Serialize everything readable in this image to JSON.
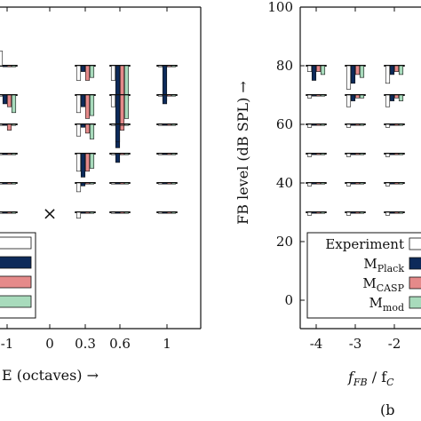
{
  "chart_data": [
    {
      "type": "bar",
      "panel": "left (cropped)",
      "xlabel": "E (octaves) →",
      "x_ticks": [
        "-1",
        "0",
        "0.3",
        "0.6",
        "1"
      ],
      "x_values": [
        -1,
        0,
        0.3,
        0.6,
        1
      ],
      "ylim": [
        0,
        100
      ],
      "reference_levels": [
        30,
        40,
        50,
        60,
        70,
        80
      ],
      "series_colors": {
        "experiment": "#ffffff",
        "plack": "#0d2a5a",
        "casp": "#e58a8a",
        "mod": "#a8dbbc"
      },
      "no_data_marker": {
        "x": 0,
        "y": 30,
        "symbol": "×"
      },
      "groups": [
        {
          "x": -1,
          "ref": 80,
          "values": {
            "experiment": 85,
            "plack": 80,
            "casp": 80,
            "mod": 80
          }
        },
        {
          "x": -1,
          "ref": 70,
          "values": {
            "experiment": 70,
            "plack": 67,
            "casp": 66,
            "mod": 64
          }
        },
        {
          "x": -1,
          "ref": 60,
          "values": {
            "experiment": 60,
            "plack": 60,
            "casp": 58,
            "mod": 60
          }
        },
        {
          "x": -1,
          "ref": 50,
          "values": {
            "experiment": 50,
            "plack": 50,
            "casp": 50,
            "mod": 50
          }
        },
        {
          "x": -1,
          "ref": 40,
          "values": {
            "experiment": 40,
            "plack": 40,
            "casp": 40,
            "mod": 40
          }
        },
        {
          "x": -1,
          "ref": 30,
          "values": {
            "experiment": 30,
            "plack": 30,
            "casp": 30,
            "mod": 30
          }
        },
        {
          "x": 0.3,
          "ref": 80,
          "values": {
            "experiment": 75,
            "plack": 78,
            "casp": 75,
            "mod": 76
          }
        },
        {
          "x": 0.3,
          "ref": 70,
          "values": {
            "experiment": 64,
            "plack": 66,
            "casp": 62,
            "mod": 63
          }
        },
        {
          "x": 0.3,
          "ref": 60,
          "values": {
            "experiment": 56,
            "plack": 59,
            "casp": 57,
            "mod": 55
          }
        },
        {
          "x": 0.3,
          "ref": 50,
          "values": {
            "experiment": 44,
            "plack": 42,
            "casp": 44,
            "mod": 45
          }
        },
        {
          "x": 0.3,
          "ref": 40,
          "values": {
            "experiment": 37,
            "plack": 39,
            "casp": 40,
            "mod": 40
          }
        },
        {
          "x": 0.3,
          "ref": 30,
          "values": {
            "experiment": 28,
            "plack": 30,
            "casp": 30,
            "mod": 30
          }
        },
        {
          "x": 0.6,
          "ref": 80,
          "values": {
            "experiment": 75,
            "plack": 62,
            "casp": 67,
            "mod": 68
          }
        },
        {
          "x": 0.6,
          "ref": 70,
          "values": {
            "experiment": 66,
            "plack": 52,
            "casp": 58,
            "mod": 62
          }
        },
        {
          "x": 0.6,
          "ref": 60,
          "values": {
            "experiment": 60,
            "plack": 54,
            "casp": 60,
            "mod": 60
          }
        },
        {
          "x": 0.6,
          "ref": 50,
          "values": {
            "experiment": 50,
            "plack": 47,
            "casp": 50,
            "mod": 50
          }
        },
        {
          "x": 0.6,
          "ref": 40,
          "values": {
            "experiment": 40,
            "plack": 40,
            "casp": 40,
            "mod": 40
          }
        },
        {
          "x": 0.6,
          "ref": 30,
          "values": {
            "experiment": 30,
            "plack": 30,
            "casp": 30,
            "mod": 30
          }
        },
        {
          "x": 1,
          "ref": 80,
          "values": {
            "experiment": 80,
            "plack": 68,
            "casp": 80,
            "mod": 80
          }
        },
        {
          "x": 1,
          "ref": 70,
          "values": {
            "experiment": 70,
            "plack": 67,
            "casp": 70,
            "mod": 70
          }
        },
        {
          "x": 1,
          "ref": 60,
          "values": {
            "experiment": 60,
            "plack": 60,
            "casp": 60,
            "mod": 60
          }
        },
        {
          "x": 1,
          "ref": 50,
          "values": {
            "experiment": 50,
            "plack": 50,
            "casp": 50,
            "mod": 50
          }
        },
        {
          "x": 1,
          "ref": 40,
          "values": {
            "experiment": 40,
            "plack": 40,
            "casp": 40,
            "mod": 40
          }
        },
        {
          "x": 1,
          "ref": 30,
          "values": {
            "experiment": 30,
            "plack": 30,
            "casp": 30,
            "mod": 30
          }
        }
      ]
    },
    {
      "type": "bar",
      "panel": "right",
      "ylabel": "FB level (dB SPL) →",
      "y_ticks": [
        "0",
        "20",
        "40",
        "60",
        "80",
        "100"
      ],
      "ylim": [
        0,
        100
      ],
      "x_ticks": [
        "-4",
        "-3",
        "-2"
      ],
      "x_values": [
        -4,
        -3,
        -2
      ],
      "xlabel_main": "f",
      "xlabel_sub": "FB",
      "xlabel_rest": " / f",
      "xlabel_sub2": "C",
      "panel_note": "(b",
      "reference_levels": [
        30,
        40,
        50,
        60,
        70,
        80
      ],
      "legend": {
        "placement": "bottom-right",
        "entries": [
          {
            "key": "experiment",
            "text": "Experiment",
            "sub": ""
          },
          {
            "key": "plack",
            "text": "M",
            "sub": "Plack"
          },
          {
            "key": "casp",
            "text": "M",
            "sub": "CASP"
          },
          {
            "key": "mod",
            "text": "M",
            "sub": "mod"
          }
        ]
      },
      "groups": [
        {
          "x": -4,
          "ref": 80,
          "values": {
            "experiment": 78,
            "plack": 75,
            "casp": 78,
            "mod": 77
          }
        },
        {
          "x": -4,
          "ref": 70,
          "values": {
            "experiment": 69,
            "plack": 70,
            "casp": 70,
            "mod": 70
          }
        },
        {
          "x": -4,
          "ref": 60,
          "values": {
            "experiment": 59,
            "plack": 60,
            "casp": 60,
            "mod": 60
          }
        },
        {
          "x": -4,
          "ref": 50,
          "values": {
            "experiment": 49,
            "plack": 50,
            "casp": 50,
            "mod": 50
          }
        },
        {
          "x": -4,
          "ref": 40,
          "values": {
            "experiment": 39,
            "plack": 40,
            "casp": 40,
            "mod": 40
          }
        },
        {
          "x": -4,
          "ref": 30,
          "values": {
            "experiment": 29,
            "plack": 30,
            "casp": 30,
            "mod": 30
          }
        },
        {
          "x": -3,
          "ref": 80,
          "values": {
            "experiment": 72,
            "plack": 74,
            "casp": 77,
            "mod": 76
          }
        },
        {
          "x": -3,
          "ref": 70,
          "values": {
            "experiment": 66,
            "plack": 68,
            "casp": 69,
            "mod": 69
          }
        },
        {
          "x": -3,
          "ref": 60,
          "values": {
            "experiment": 59,
            "plack": 60,
            "casp": 60,
            "mod": 60
          }
        },
        {
          "x": -3,
          "ref": 50,
          "values": {
            "experiment": 49,
            "plack": 50,
            "casp": 50,
            "mod": 50
          }
        },
        {
          "x": -3,
          "ref": 40,
          "values": {
            "experiment": 39,
            "plack": 40,
            "casp": 40,
            "mod": 40
          }
        },
        {
          "x": -3,
          "ref": 30,
          "values": {
            "experiment": 29,
            "plack": 30,
            "casp": 30,
            "mod": 30
          }
        },
        {
          "x": -2,
          "ref": 80,
          "values": {
            "experiment": 74,
            "plack": 77,
            "casp": 78,
            "mod": 77
          }
        },
        {
          "x": -2,
          "ref": 70,
          "values": {
            "experiment": 66,
            "plack": 68,
            "casp": 69,
            "mod": 68
          }
        },
        {
          "x": -2,
          "ref": 60,
          "values": {
            "experiment": 59,
            "plack": 60,
            "casp": 60,
            "mod": 60
          }
        },
        {
          "x": -2,
          "ref": 50,
          "values": {
            "experiment": 49,
            "plack": 50,
            "casp": 50,
            "mod": 50
          }
        },
        {
          "x": -2,
          "ref": 40,
          "values": {
            "experiment": 39,
            "plack": 40,
            "casp": 40,
            "mod": 40
          }
        },
        {
          "x": -2,
          "ref": 30,
          "values": {
            "experiment": 29,
            "plack": 30,
            "casp": 30,
            "mod": 30
          }
        }
      ]
    }
  ]
}
